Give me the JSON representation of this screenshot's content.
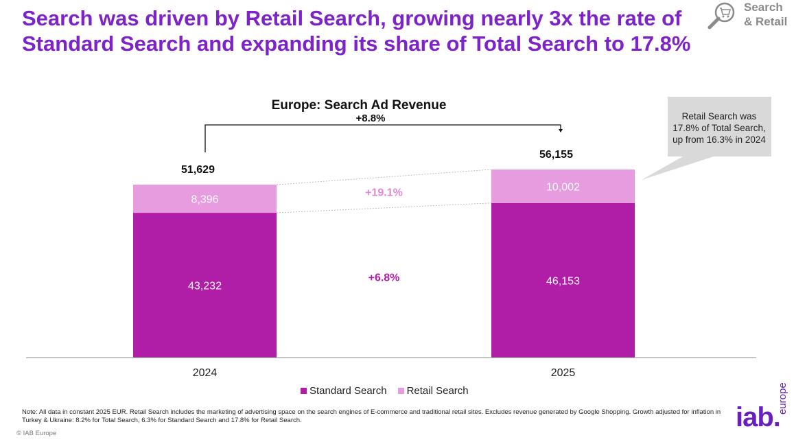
{
  "headline": "Search was driven by Retail Search, growing nearly 3x the rate of Standard Search and expanding its share of Total Search to 17.8%",
  "badge": {
    "line1": "Search",
    "line2": "& Retail",
    "icon": "magnifier-cart-icon",
    "color": "#8a8a8a"
  },
  "chart_data": {
    "type": "bar",
    "stacked": true,
    "title": "Europe: Search Ad Revenue",
    "categories": [
      "2024",
      "2025"
    ],
    "series": [
      {
        "name": "Standard Search",
        "values": [
          43232,
          46153
        ],
        "labels": [
          "43,232",
          "46,153"
        ],
        "color": "#b01ea8"
      },
      {
        "name": "Retail Search",
        "values": [
          8396,
          10002
        ],
        "labels": [
          "8,396",
          "10,002"
        ],
        "color": "#e89ce0"
      }
    ],
    "totals": [
      51629,
      56155
    ],
    "total_labels": [
      "51,629",
      "56,155"
    ],
    "growth": {
      "total": "+8.8%",
      "standard": "+6.8%",
      "retail": "+19.1%"
    },
    "ylim": [
      0,
      56155
    ],
    "grid": false,
    "legend": "bottom-center"
  },
  "callout": "Retail Search was 17.8% of Total Search, up from 16.3% in 2024",
  "note": "Note: All data in constant 2025 EUR. Retail Search includes the marketing of advertising space on the search engines of E-commerce and traditional retail sites. Excludes revenue generated by Google Shopping. Growth adjusted for inflation in Turkey & Ukraine: 8.2% for Total Search, 6.3% for Standard Search and 17.8% for Retail Search.",
  "copyright": "© IAB Europe",
  "logo": {
    "main": "iab.",
    "sub": "europe",
    "color": "#6a1fbf"
  }
}
